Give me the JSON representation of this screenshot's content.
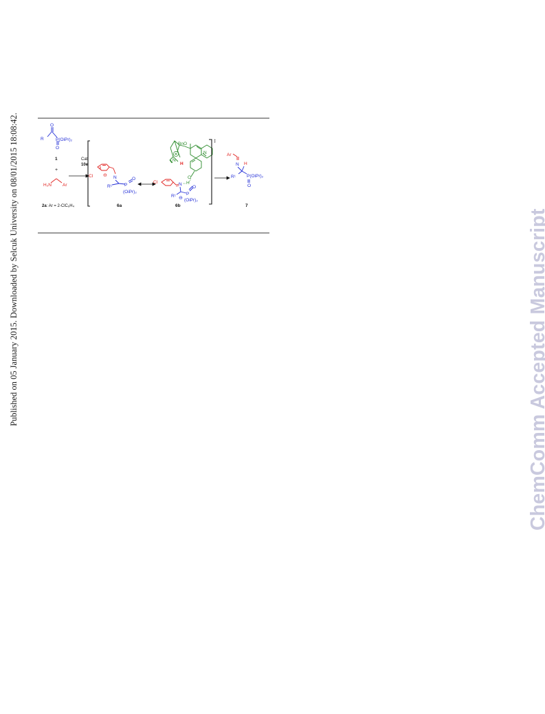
{
  "sidebar_note": "Published on 05 January 2015. Downloaded by Selcuk University on 08/01/2015 18:08:42.",
  "watermark": "ChemComm Accepted Manuscript",
  "scheme": {
    "colors": {
      "substrate": "#1f2bd6",
      "amine": "#e0201e",
      "catalyst": "#2a8a2a",
      "text": "#111111"
    },
    "compound1": {
      "r_label": "R",
      "o_label": "O",
      "phosphonate": "P(OiPr)₂",
      "po_label": "O",
      "number": "1"
    },
    "plus": "+",
    "compound2a": {
      "amine": "H₂N",
      "ar": "Ar",
      "caption_bold": "2a",
      "caption_text": ": Ar = 2-ClC₆H₄"
    },
    "arrow1": {
      "line1": "Cat.",
      "line2": "10e"
    },
    "intermediate6a": {
      "cl": "Cl",
      "n": "N",
      "charge": "⊖",
      "r1": "R¹",
      "p": "P",
      "o": "O",
      "oipr": "(OiPr)₂",
      "number": "6a"
    },
    "intermediate6b": {
      "bno": "BnO",
      "n_plus": "N",
      "h": "H",
      "n_ring": "N",
      "o": "O",
      "cl": "Cl",
      "n": "N",
      "h2": "H",
      "r1": "R¹",
      "p": "P",
      "o2": "O",
      "oipr": "(OiPr)₂",
      "charge": "⊖",
      "number": "6b",
      "ts_mark": "‡"
    },
    "product7": {
      "ar": "Ar",
      "n": "N",
      "h": "H",
      "r1": "R¹",
      "phosphonate": "P(OiPr)₂",
      "o": "O",
      "number": "7"
    }
  }
}
